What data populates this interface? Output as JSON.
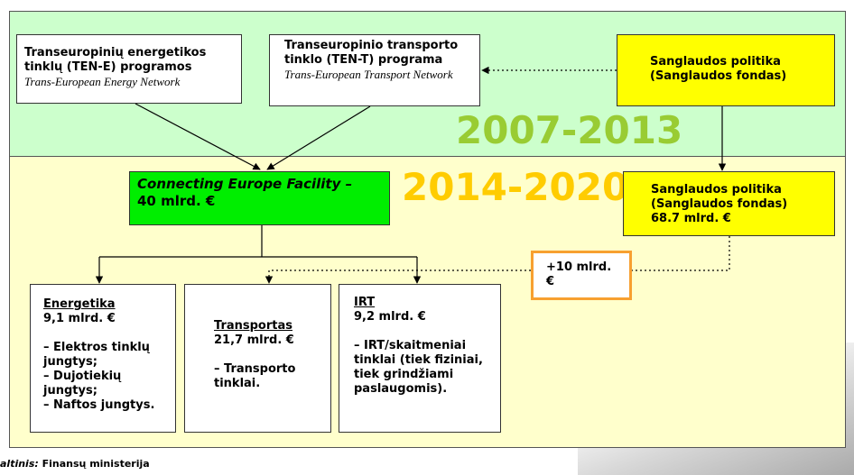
{
  "period_labels": [
    "2007-2013",
    "2014-2020"
  ],
  "nodes": [
    {
      "title": "Transeuropinių energetikos tinklų (TEN-E) programos",
      "subtitle": "Trans-European Energy Network"
    },
    {
      "title": "Transeuropinio transporto tinklo (TEN-T) programa",
      "subtitle": "Trans-European Transport Network"
    },
    {
      "title": "Sanglaudos politika (Sanglaudos fondas)"
    },
    {
      "title": "Connecting Europe Facility –",
      "amount": "40 mlrd. €"
    },
    {
      "title": "Sanglaudos politika (Sanglaudos fondas)",
      "amount": "68.7 mlrd. €"
    },
    {
      "title": "+10 mlrd. €"
    },
    {
      "title": "Energetika",
      "amount": "9,1 mlrd. €",
      "items": [
        "– Elektros tinklų jungtys;",
        "– Dujotiekių jungtys;",
        "– Naftos jungtys."
      ]
    },
    {
      "title": "Transportas",
      "amount": "21,7 mlrd. €",
      "items": [
        "– Transporto tinklai."
      ]
    },
    {
      "title": "IRT",
      "amount": "9,2 mlrd. €",
      "items": [
        "– IRT/skaitmeniai tinklai (tiek fiziniai, tiek grindžiami paslaugomis)."
      ]
    }
  ],
  "footer": {
    "label": "altinis:",
    "source": "Finansų ministerija"
  }
}
